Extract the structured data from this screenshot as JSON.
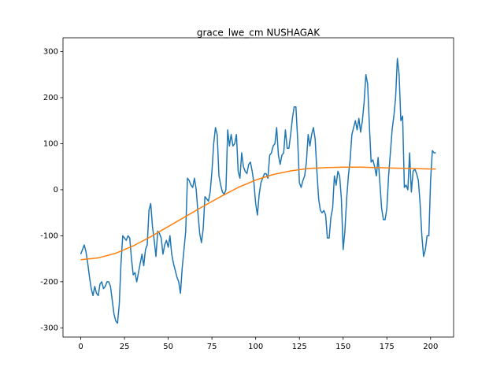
{
  "chart_data": {
    "type": "line",
    "title": "grace_lwe_cm NUSHAGAK",
    "xlim": [
      -10.15,
      213.15
    ],
    "ylim": [
      -320,
      330
    ],
    "xticks": [
      0,
      25,
      50,
      75,
      100,
      125,
      150,
      175,
      200
    ],
    "yticks": [
      -300,
      -200,
      -100,
      0,
      100,
      200,
      300
    ],
    "grid": false,
    "series": [
      {
        "color": "#1f77b4",
        "x": [
          0,
          1,
          2,
          3,
          4,
          5,
          6,
          7,
          8,
          9,
          10,
          11,
          12,
          13,
          14,
          15,
          16,
          17,
          18,
          19,
          20,
          21,
          22,
          23,
          24,
          25,
          26,
          27,
          28,
          29,
          30,
          31,
          32,
          33,
          34,
          35,
          36,
          37,
          38,
          39,
          40,
          41,
          42,
          43,
          44,
          45,
          46,
          47,
          48,
          49,
          50,
          51,
          52,
          53,
          54,
          55,
          56,
          57,
          58,
          59,
          60,
          61,
          62,
          63,
          64,
          65,
          66,
          67,
          68,
          69,
          70,
          71,
          72,
          73,
          74,
          75,
          76,
          77,
          78,
          79,
          80,
          81,
          82,
          83,
          84,
          85,
          86,
          87,
          88,
          89,
          90,
          91,
          92,
          93,
          94,
          95,
          96,
          97,
          98,
          99,
          100,
          101,
          102,
          103,
          104,
          105,
          106,
          107,
          108,
          109,
          110,
          111,
          112,
          113,
          114,
          115,
          116,
          117,
          118,
          119,
          120,
          121,
          122,
          123,
          124,
          125,
          126,
          127,
          128,
          129,
          130,
          131,
          132,
          133,
          134,
          135,
          136,
          137,
          138,
          139,
          140,
          141,
          142,
          143,
          144,
          145,
          146,
          147,
          148,
          149,
          150,
          151,
          152,
          153,
          154,
          155,
          156,
          157,
          158,
          159,
          160,
          161,
          162,
          163,
          164,
          165,
          166,
          167,
          168,
          169,
          170,
          171,
          172,
          173,
          174,
          175,
          176,
          177,
          178,
          179,
          180,
          181,
          182,
          183,
          184,
          185,
          186,
          187,
          188,
          189,
          190,
          191,
          192,
          193,
          194,
          195,
          196,
          197,
          198,
          199,
          200,
          201,
          202,
          203
        ],
        "values": [
          -140,
          -130,
          -120,
          -135,
          -160,
          -190,
          -215,
          -230,
          -210,
          -225,
          -230,
          -205,
          -200,
          -215,
          -210,
          -200,
          -200,
          -210,
          -240,
          -270,
          -285,
          -290,
          -250,
          -160,
          -100,
          -105,
          -110,
          -100,
          -105,
          -150,
          -185,
          -180,
          -200,
          -180,
          -160,
          -140,
          -165,
          -130,
          -120,
          -45,
          -30,
          -80,
          -110,
          -145,
          -90,
          -95,
          -105,
          -140,
          -120,
          -110,
          -125,
          -100,
          -140,
          -160,
          -175,
          -190,
          -200,
          -225,
          -170,
          -130,
          -90,
          25,
          20,
          10,
          5,
          25,
          0,
          -50,
          -95,
          -115,
          -85,
          -15,
          -20,
          -25,
          -5,
          40,
          100,
          135,
          120,
          30,
          10,
          -5,
          -10,
          0,
          130,
          95,
          120,
          95,
          100,
          120,
          40,
          25,
          80,
          50,
          40,
          35,
          55,
          60,
          40,
          15,
          -30,
          -55,
          -10,
          15,
          25,
          35,
          35,
          25,
          75,
          80,
          95,
          100,
          135,
          75,
          55,
          75,
          80,
          130,
          90,
          90,
          120,
          155,
          180,
          180,
          110,
          15,
          5,
          20,
          30,
          60,
          120,
          95,
          120,
          135,
          110,
          40,
          -20,
          -45,
          -50,
          -45,
          -55,
          -105,
          -105,
          -60,
          -40,
          30,
          10,
          40,
          30,
          -20,
          -130,
          -90,
          -20,
          30,
          65,
          120,
          135,
          150,
          130,
          155,
          125,
          150,
          190,
          250,
          230,
          140,
          60,
          65,
          50,
          30,
          70,
          15,
          -40,
          -65,
          -65,
          -40,
          30,
          80,
          130,
          160,
          200,
          285,
          250,
          150,
          160,
          5,
          10,
          0,
          80,
          -5,
          40,
          45,
          35,
          20,
          -30,
          -100,
          -145,
          -130,
          -100,
          -100,
          20,
          85,
          80,
          80
        ]
      },
      {
        "color": "#ff7f0e",
        "x": [
          0,
          10,
          20,
          30,
          40,
          50,
          60,
          70,
          80,
          90,
          100,
          110,
          120,
          130,
          140,
          150,
          160,
          170,
          180,
          190,
          200,
          203
        ],
        "values": [
          -152,
          -148,
          -138,
          -122,
          -102,
          -80,
          -58,
          -36,
          -15,
          5,
          21,
          33,
          41,
          46,
          48,
          49,
          49,
          48,
          47,
          46,
          45,
          45
        ]
      }
    ]
  }
}
